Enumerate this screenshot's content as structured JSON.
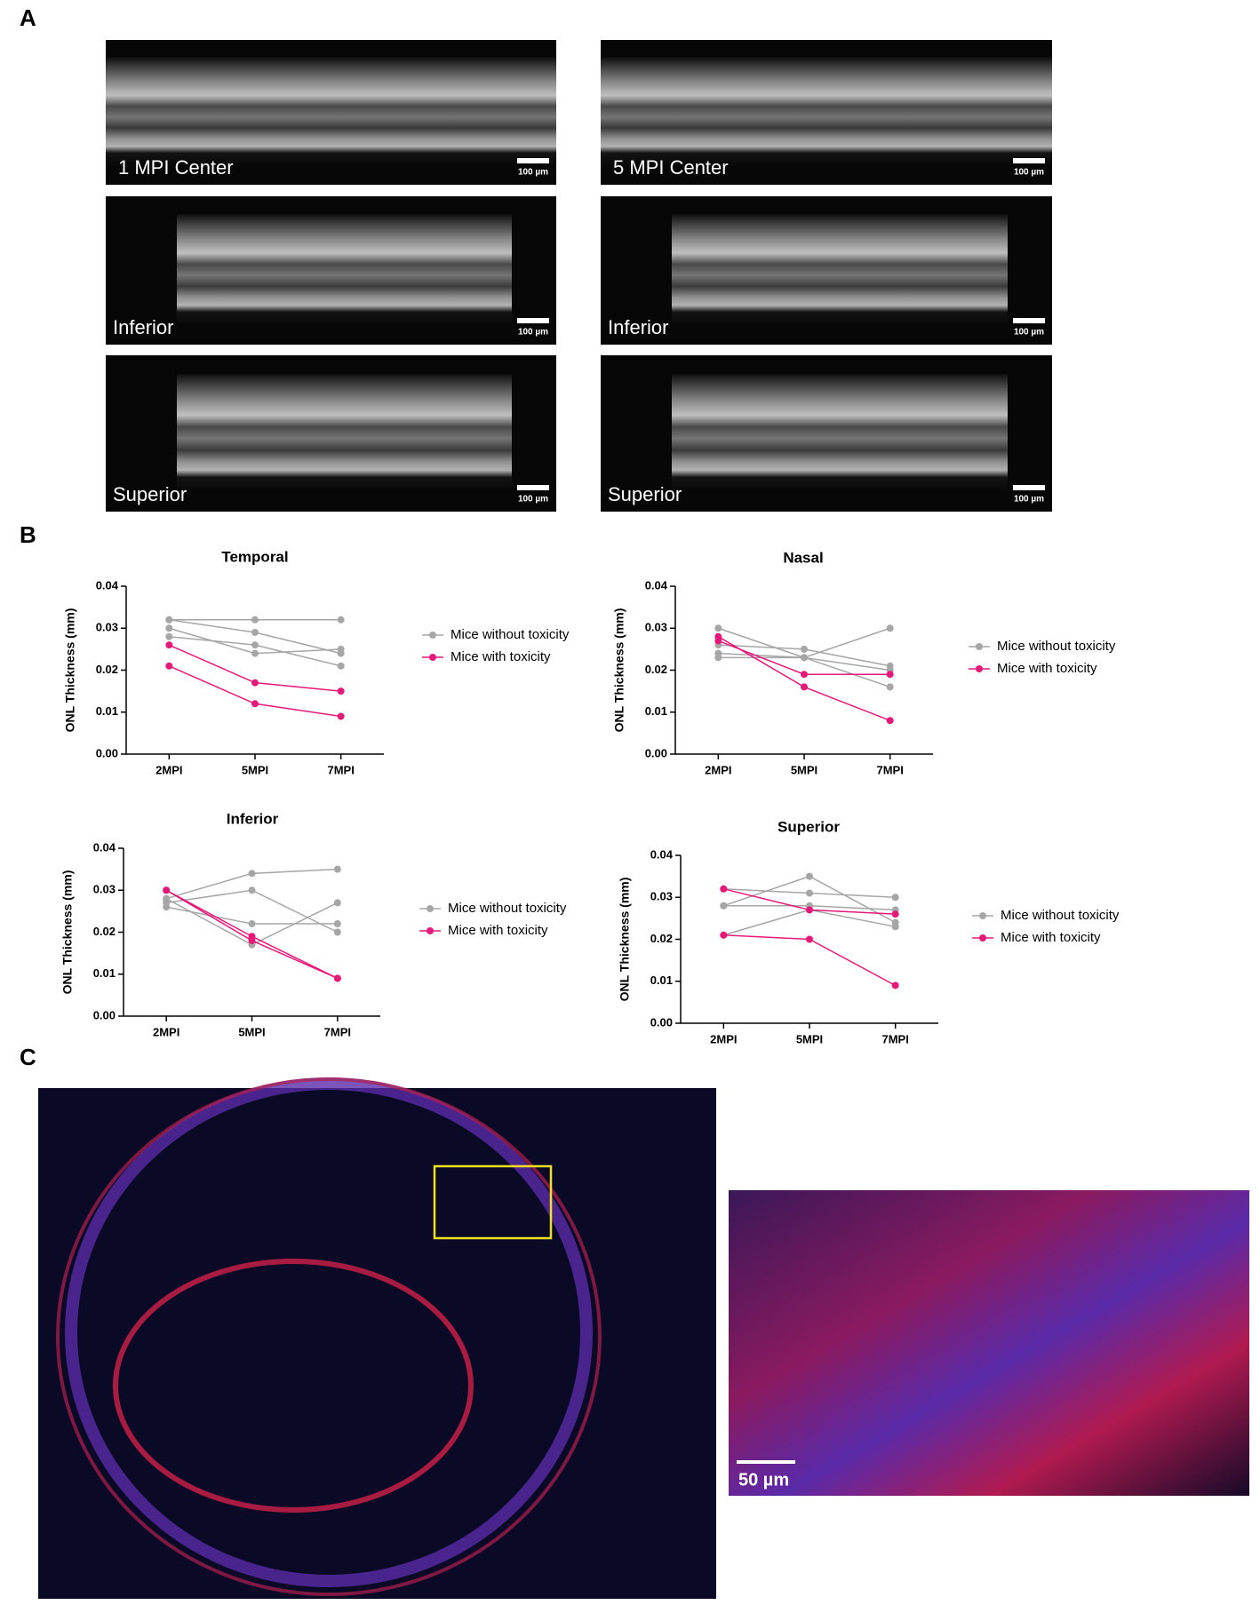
{
  "panel_labels": [
    "A",
    "B",
    "C"
  ],
  "panel_a": {
    "images": [
      {
        "caption": "1 MPI Center",
        "scale_label": "100 µm"
      },
      {
        "caption": "5 MPI Center",
        "scale_label": "100 µm"
      },
      {
        "caption": "Inferior",
        "scale_label": "100 µm"
      },
      {
        "caption": "Inferior",
        "scale_label": "100 µm"
      },
      {
        "caption": "Superior",
        "scale_label": "100 µm"
      },
      {
        "caption": "Superior",
        "scale_label": "100 µm"
      }
    ]
  },
  "panel_c": {
    "scale_label": "50 µm"
  },
  "chart_data": [
    {
      "type": "line",
      "title": "Temporal",
      "y_label": "ONL Thickness (mm)",
      "categories": [
        "2MPI",
        "5MPI",
        "7MPI"
      ],
      "ylim": [
        0,
        0.04
      ],
      "yticks": [
        {
          "value": 0,
          "label": "0.00"
        },
        {
          "value": 0.01,
          "label": "0.01"
        },
        {
          "value": 0.02,
          "label": "0.02"
        },
        {
          "value": 0.03,
          "label": "0.03"
        },
        {
          "value": 0.04,
          "label": "0.04"
        }
      ],
      "series": [
        {
          "name": "Mice without toxicity",
          "color": "#a6a6a6",
          "lines": [
            [
              0.032,
              0.032,
              0.032
            ],
            [
              0.032,
              0.029,
              0.024
            ],
            [
              0.03,
              0.024,
              0.025
            ],
            [
              0.028,
              0.026,
              0.021
            ]
          ]
        },
        {
          "name": "Mice with toxicity",
          "color": "#e5197a",
          "lines": [
            [
              0.026,
              0.017,
              0.015
            ],
            [
              0.021,
              0.012,
              0.009
            ]
          ]
        }
      ]
    },
    {
      "type": "line",
      "title": "Nasal",
      "y_label": "ONL Thickness (mm)",
      "categories": [
        "2MPI",
        "5MPI",
        "7MPI"
      ],
      "ylim": [
        0,
        0.04
      ],
      "yticks": [
        {
          "value": 0,
          "label": "0.00"
        },
        {
          "value": 0.01,
          "label": "0.01"
        },
        {
          "value": 0.02,
          "label": "0.02"
        },
        {
          "value": 0.03,
          "label": "0.03"
        },
        {
          "value": 0.04,
          "label": "0.04"
        }
      ],
      "series": [
        {
          "name": "Mice without toxicity",
          "color": "#a6a6a6",
          "lines": [
            [
              0.03,
              0.023,
              0.03
            ],
            [
              0.026,
              0.025,
              0.021
            ],
            [
              0.024,
              0.023,
              0.016
            ],
            [
              0.023,
              0.023,
              0.02
            ]
          ]
        },
        {
          "name": "Mice with toxicity",
          "color": "#e5197a",
          "lines": [
            [
              0.028,
              0.016,
              0.008
            ],
            [
              0.027,
              0.019,
              0.019
            ]
          ]
        }
      ]
    },
    {
      "type": "line",
      "title": "Inferior",
      "y_label": "ONL Thickness (mm)",
      "categories": [
        "2MPI",
        "5MPI",
        "7MPI"
      ],
      "ylim": [
        0,
        0.04
      ],
      "yticks": [
        {
          "value": 0,
          "label": "0.00"
        },
        {
          "value": 0.01,
          "label": "0.01"
        },
        {
          "value": 0.02,
          "label": "0.02"
        },
        {
          "value": 0.03,
          "label": "0.03"
        },
        {
          "value": 0.04,
          "label": "0.04"
        }
      ],
      "series": [
        {
          "name": "Mice without toxicity",
          "color": "#a6a6a6",
          "lines": [
            [
              0.028,
              0.034,
              0.035
            ],
            [
              0.027,
              0.03,
              0.02
            ],
            [
              0.026,
              0.022,
              0.022
            ],
            [
              0.028,
              0.017,
              0.027
            ]
          ]
        },
        {
          "name": "Mice with toxicity",
          "color": "#e5197a",
          "lines": [
            [
              0.03,
              0.019,
              0.009
            ],
            [
              0.03,
              0.018,
              0.009
            ]
          ]
        }
      ]
    },
    {
      "type": "line",
      "title": "Superior",
      "y_label": "ONL Thickness (mm)",
      "categories": [
        "2MPI",
        "5MPI",
        "7MPI"
      ],
      "ylim": [
        0,
        0.04
      ],
      "yticks": [
        {
          "value": 0,
          "label": "0.00"
        },
        {
          "value": 0.01,
          "label": "0.01"
        },
        {
          "value": 0.02,
          "label": "0.02"
        },
        {
          "value": 0.03,
          "label": "0.03"
        },
        {
          "value": 0.04,
          "label": "0.04"
        }
      ],
      "series": [
        {
          "name": "Mice without toxicity",
          "color": "#a6a6a6",
          "lines": [
            [
              0.028,
              0.035,
              0.024
            ],
            [
              0.032,
              0.031,
              0.03
            ],
            [
              0.028,
              0.028,
              0.027
            ],
            [
              0.021,
              0.027,
              0.023
            ]
          ]
        },
        {
          "name": "Mice with toxicity",
          "color": "#e5197a",
          "lines": [
            [
              0.032,
              0.027,
              0.026
            ],
            [
              0.021,
              0.02,
              0.009
            ]
          ]
        }
      ]
    }
  ]
}
